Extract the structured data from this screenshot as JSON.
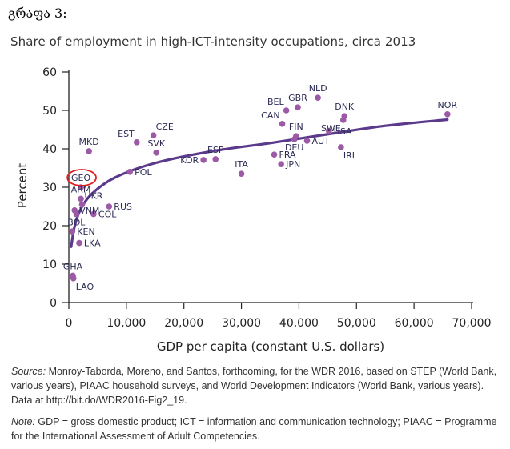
{
  "heading": "გრაფა 3:",
  "footnotes": {
    "source_label": "Source:",
    "source_text": " Monroy-Taborda, Moreno, and Santos, forthcoming, for the WDR 2016, based on STEP (World Bank, various years), PIAAC household surveys, and World Development Indicators (World Bank, various years). Data at http://bit.do/WDR2016-Fig2_19.",
    "note_label": "Note:",
    "note_text": " GDP = gross domestic product; ICT = information and communication technology; PIAAC = Programme for the International Assessment of Adult Competencies."
  },
  "chart_data": {
    "type": "scatter",
    "title": "Share of employment in high-ICT-intensity occupations, circa 2013",
    "xlabel": "GDP per capita (constant U.S. dollars)",
    "ylabel": "Percent",
    "xlim": [
      0,
      70000
    ],
    "ylim": [
      0,
      60
    ],
    "xticks": [
      0,
      10000,
      20000,
      30000,
      40000,
      50000,
      60000,
      70000
    ],
    "xtick_labels": [
      "0",
      "10,000",
      "20,000",
      "30,000",
      "40,000",
      "50,000",
      "60,000",
      "70,000"
    ],
    "yticks": [
      0,
      10,
      20,
      30,
      40,
      50,
      60
    ],
    "ytick_labels": [
      "0",
      "10",
      "20",
      "30",
      "40",
      "50",
      "60"
    ],
    "grid": false,
    "point_color": "#9b59a6",
    "trend_color": "#5b3a8c",
    "highlight_color": "#e02020",
    "highlighted": "GEO",
    "points": [
      {
        "label": "MKD",
        "x": 3500,
        "y": 39.4,
        "pos": "t"
      },
      {
        "label": "EST",
        "x": 11800,
        "y": 41.7,
        "pos": "tl"
      },
      {
        "label": "CZE",
        "x": 14700,
        "y": 43.5,
        "pos": "tr"
      },
      {
        "label": "SVK",
        "x": 15200,
        "y": 39.0,
        "pos": "t"
      },
      {
        "label": "POL",
        "x": 10600,
        "y": 34.0,
        "pos": "r"
      },
      {
        "label": "KOR",
        "x": 23400,
        "y": 37.1,
        "pos": "l"
      },
      {
        "label": "ESP",
        "x": 25500,
        "y": 37.3,
        "pos": "t"
      },
      {
        "label": "ITA",
        "x": 30000,
        "y": 33.5,
        "pos": "t"
      },
      {
        "label": "NLD",
        "x": 43300,
        "y": 53.3,
        "pos": "t"
      },
      {
        "label": "GBR",
        "x": 39800,
        "y": 50.8,
        "pos": "t"
      },
      {
        "label": "BEL",
        "x": 37800,
        "y": 50.0,
        "pos": "tl"
      },
      {
        "label": "CAN",
        "x": 37100,
        "y": 46.5,
        "pos": "tl"
      },
      {
        "label": "FIN",
        "x": 39500,
        "y": 43.3,
        "pos": "t"
      },
      {
        "label": "DEU",
        "x": 39200,
        "y": 42.5,
        "pos": "b"
      },
      {
        "label": "AUT",
        "x": 41400,
        "y": 42.1,
        "pos": "r"
      },
      {
        "label": "SWE",
        "x": 47700,
        "y": 47.5,
        "pos": "bl"
      },
      {
        "label": "USA",
        "x": 45200,
        "y": 44.6,
        "pos": "r"
      },
      {
        "label": "IRL",
        "x": 47300,
        "y": 40.4,
        "pos": "br"
      },
      {
        "label": "DNK",
        "x": 47900,
        "y": 48.5,
        "pos": "t"
      },
      {
        "label": "FRA",
        "x": 35700,
        "y": 38.5,
        "pos": "r"
      },
      {
        "label": "JPN",
        "x": 36900,
        "y": 36.0,
        "pos": "r"
      },
      {
        "label": "NOR",
        "x": 65800,
        "y": 49.0,
        "pos": "t"
      },
      {
        "label": "GEO",
        "x": 2100,
        "y": 30.0,
        "pos": "t"
      },
      {
        "label": "ARM",
        "x": 2100,
        "y": 27.0,
        "pos": "t"
      },
      {
        "label": "UKR",
        "x": 2300,
        "y": 25.5,
        "pos": "tr"
      },
      {
        "label": "VNM",
        "x": 1000,
        "y": 24.0,
        "pos": "r"
      },
      {
        "label": "BOL",
        "x": 1300,
        "y": 23.0,
        "pos": "b"
      },
      {
        "label": "COL",
        "x": 4300,
        "y": 23.0,
        "pos": "r"
      },
      {
        "label": "RUS",
        "x": 7000,
        "y": 25.0,
        "pos": "r"
      },
      {
        "label": "KEN",
        "x": 600,
        "y": 18.5,
        "pos": "r"
      },
      {
        "label": "LKA",
        "x": 1800,
        "y": 15.5,
        "pos": "r"
      },
      {
        "label": "GHA",
        "x": 700,
        "y": 7.0,
        "pos": "t"
      },
      {
        "label": "LAO",
        "x": 800,
        "y": 6.3,
        "pos": "br"
      }
    ],
    "trend": {
      "type": "logarithmic",
      "x": [
        400,
        1000,
        2000,
        4000,
        8000,
        15000,
        25000,
        35000,
        45000,
        55000,
        65800
      ],
      "y": [
        14.5,
        19.8,
        24.1,
        28.3,
        32.5,
        36.3,
        39.4,
        41.5,
        43.8,
        46.0,
        47.6
      ]
    }
  }
}
